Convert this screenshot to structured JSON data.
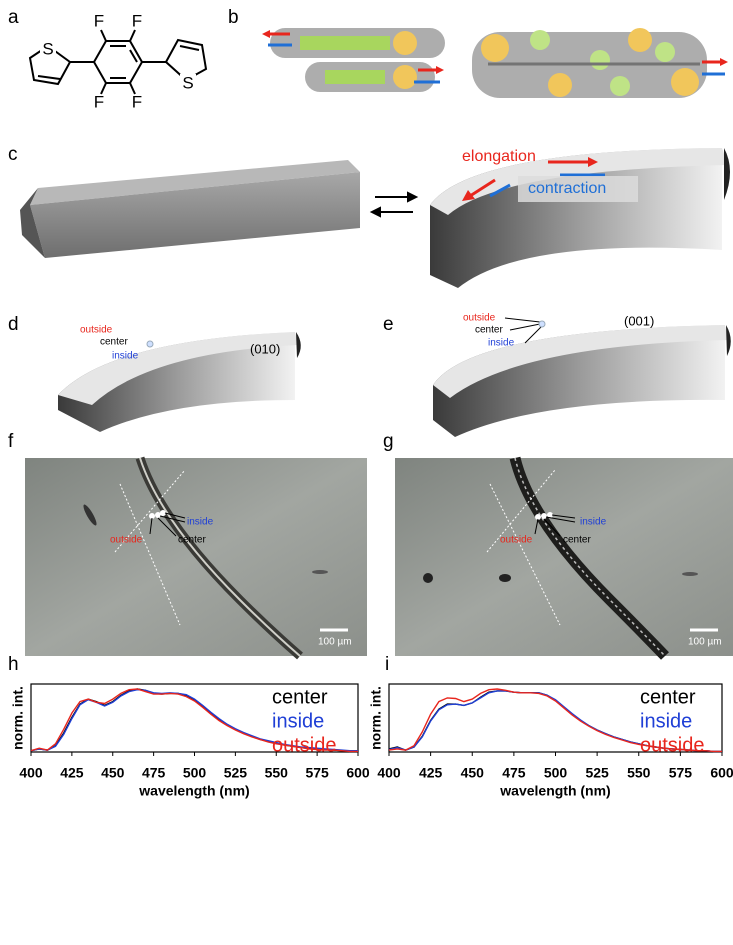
{
  "panel_labels": [
    "a",
    "b",
    "c",
    "d",
    "e",
    "f",
    "g",
    "h",
    "i"
  ],
  "molecule": {
    "labels": [
      "S",
      "F",
      "F",
      "F",
      "F",
      "S"
    ]
  },
  "panel_c": {
    "elongation": "elongation",
    "contraction": "contraction"
  },
  "panel_d": {
    "outside": "outside",
    "center": "center",
    "inside": "inside",
    "plane": "(010)"
  },
  "panel_e": {
    "outside": "outside",
    "center": "center",
    "inside": "inside",
    "plane": "(001)"
  },
  "panel_f": {
    "outside": "outside",
    "center": "center",
    "inside": "inside",
    "scale": "100 µm"
  },
  "panel_g": {
    "outside": "outside",
    "center": "center",
    "inside": "inside",
    "scale": "100 µm"
  },
  "chart_data": [
    {
      "type": "line",
      "xlabel": "wavelength (nm)",
      "ylabel": "norm. int.",
      "x": [
        400,
        405,
        410,
        415,
        420,
        425,
        430,
        435,
        440,
        445,
        450,
        455,
        460,
        465,
        470,
        475,
        480,
        485,
        490,
        495,
        500,
        505,
        510,
        515,
        520,
        525,
        530,
        535,
        540,
        545,
        550,
        555,
        560,
        565,
        570,
        575,
        580,
        585,
        590,
        595,
        600
      ],
      "xlim": [
        400,
        600
      ],
      "xticks": [
        400,
        425,
        450,
        475,
        500,
        525,
        550,
        575,
        600
      ],
      "ylim": [
        0,
        1.08
      ],
      "series": [
        {
          "name": "center",
          "color": "#000000",
          "values": [
            0.02,
            0.05,
            0.03,
            0.1,
            0.3,
            0.55,
            0.76,
            0.84,
            0.8,
            0.74,
            0.8,
            0.9,
            0.97,
            1.0,
            0.98,
            0.93,
            0.92,
            0.93,
            0.93,
            0.9,
            0.83,
            0.73,
            0.62,
            0.52,
            0.43,
            0.36,
            0.3,
            0.25,
            0.2,
            0.17,
            0.14,
            0.11,
            0.09,
            0.07,
            0.06,
            0.05,
            0.04,
            0.03,
            0.02,
            0.02,
            0.01
          ]
        },
        {
          "name": "inside",
          "color": "#1f3fd6",
          "values": [
            0.02,
            0.05,
            0.03,
            0.09,
            0.28,
            0.53,
            0.75,
            0.83,
            0.79,
            0.73,
            0.79,
            0.89,
            0.96,
            0.99,
            0.98,
            0.94,
            0.93,
            0.94,
            0.93,
            0.91,
            0.84,
            0.74,
            0.63,
            0.53,
            0.44,
            0.37,
            0.31,
            0.26,
            0.21,
            0.18,
            0.15,
            0.12,
            0.1,
            0.08,
            0.07,
            0.06,
            0.05,
            0.04,
            0.03,
            0.02,
            0.02
          ]
        },
        {
          "name": "outside",
          "color": "#e8261d",
          "values": [
            0.02,
            0.06,
            0.03,
            0.13,
            0.36,
            0.62,
            0.8,
            0.84,
            0.79,
            0.77,
            0.84,
            0.93,
            0.99,
            1.0,
            0.96,
            0.92,
            0.92,
            0.93,
            0.92,
            0.88,
            0.81,
            0.71,
            0.6,
            0.5,
            0.42,
            0.35,
            0.29,
            0.24,
            0.2,
            0.16,
            0.13,
            0.11,
            0.09,
            0.07,
            0.05,
            0.04,
            0.03,
            0.03,
            0.02,
            0.01,
            0.01
          ]
        }
      ]
    },
    {
      "type": "line",
      "xlabel": "wavelength (nm)",
      "ylabel": "norm. int.",
      "x": [
        400,
        405,
        410,
        415,
        420,
        425,
        430,
        435,
        440,
        445,
        450,
        455,
        460,
        465,
        470,
        475,
        480,
        485,
        490,
        495,
        500,
        505,
        510,
        515,
        520,
        525,
        530,
        535,
        540,
        545,
        550,
        555,
        560,
        565,
        570,
        575,
        580,
        585,
        590,
        595,
        600
      ],
      "xlim": [
        400,
        600
      ],
      "xticks": [
        400,
        425,
        450,
        475,
        500,
        525,
        550,
        575,
        600
      ],
      "ylim": [
        0,
        1.08
      ],
      "series": [
        {
          "name": "center",
          "color": "#000000",
          "values": [
            0.05,
            0.08,
            0.03,
            0.08,
            0.25,
            0.5,
            0.68,
            0.76,
            0.76,
            0.74,
            0.78,
            0.87,
            0.95,
            0.97,
            0.97,
            0.95,
            0.94,
            0.94,
            0.94,
            0.9,
            0.82,
            0.71,
            0.6,
            0.5,
            0.42,
            0.35,
            0.29,
            0.24,
            0.2,
            0.16,
            0.13,
            0.1,
            0.08,
            0.06,
            0.05,
            0.04,
            0.03,
            0.02,
            0.02,
            0.01,
            0.01
          ]
        },
        {
          "name": "inside",
          "color": "#1f3fd6",
          "values": [
            0.04,
            0.07,
            0.03,
            0.08,
            0.24,
            0.49,
            0.67,
            0.75,
            0.76,
            0.74,
            0.78,
            0.86,
            0.94,
            0.97,
            0.97,
            0.95,
            0.94,
            0.94,
            0.94,
            0.9,
            0.83,
            0.72,
            0.61,
            0.51,
            0.42,
            0.35,
            0.29,
            0.24,
            0.2,
            0.16,
            0.13,
            0.1,
            0.08,
            0.06,
            0.05,
            0.04,
            0.03,
            0.02,
            0.02,
            0.01,
            0.01
          ]
        },
        {
          "name": "outside",
          "color": "#e8261d",
          "values": [
            0.03,
            0.05,
            0.03,
            0.1,
            0.32,
            0.6,
            0.8,
            0.86,
            0.85,
            0.8,
            0.84,
            0.93,
            0.99,
            1.0,
            0.98,
            0.95,
            0.94,
            0.94,
            0.93,
            0.89,
            0.81,
            0.7,
            0.59,
            0.49,
            0.41,
            0.34,
            0.28,
            0.23,
            0.19,
            0.15,
            0.12,
            0.1,
            0.08,
            0.06,
            0.05,
            0.04,
            0.03,
            0.02,
            0.02,
            0.01,
            0.01
          ]
        }
      ]
    }
  ]
}
